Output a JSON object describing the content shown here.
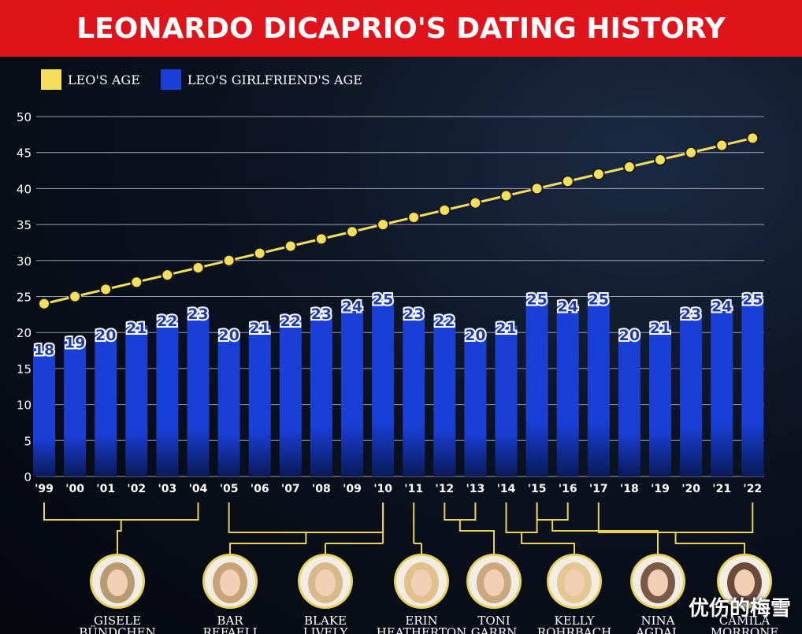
{
  "colors": {
    "banner": "#e0131b",
    "leo_line": "#f3df5a",
    "girlfriend_bar": "#1a3fd6",
    "bracket": "#e8d25a"
  },
  "watermark": "优伤的梅雪",
  "chart_data": {
    "type": "bar",
    "title": "LEONARDO DICAPRIO'S DATING HISTORY",
    "categories": [
      "'99",
      "'00",
      "'01",
      "'02",
      "'03",
      "'04",
      "'05",
      "'06",
      "'07",
      "'08",
      "'09",
      "'10",
      "'11",
      "'12",
      "'13",
      "'14",
      "'15",
      "'16",
      "'17",
      "'18",
      "'19",
      "'20",
      "'21",
      "'22"
    ],
    "series": [
      {
        "name": "LEO'S AGE",
        "type": "line",
        "values": [
          24,
          25,
          26,
          27,
          28,
          29,
          30,
          31,
          32,
          33,
          34,
          35,
          36,
          37,
          38,
          39,
          40,
          41,
          42,
          43,
          44,
          45,
          46,
          47
        ]
      },
      {
        "name": "LEO'S GIRLFRIEND'S AGE",
        "type": "bar",
        "values": [
          18,
          19,
          20,
          21,
          22,
          23,
          20,
          21,
          22,
          23,
          24,
          25,
          23,
          22,
          20,
          21,
          25,
          24,
          25,
          20,
          21,
          23,
          24,
          25
        ]
      }
    ],
    "yticks": [
      0,
      5,
      10,
      15,
      20,
      25,
      30,
      35,
      40,
      45,
      50
    ],
    "ylim": [
      0,
      50
    ],
    "grid": true,
    "legend": "top-left",
    "girlfriends": [
      {
        "name": [
          "GISELE",
          "BÜNDCHEN"
        ],
        "from": 0,
        "to": 5,
        "tone": "#b89a72"
      },
      {
        "name": [
          "BAR",
          "REFAELI"
        ],
        "from": 6,
        "to": 11,
        "tone": "#c9a27a"
      },
      {
        "name": [
          "BLAKE",
          "LIVELY"
        ],
        "from": 11,
        "to": 11,
        "tone": "#d8b98a"
      },
      {
        "name": [
          "ERIN",
          "HEATHERTON"
        ],
        "from": 12,
        "to": 12,
        "tone": "#e2c08c"
      },
      {
        "name": [
          "TONI",
          "GARRN"
        ],
        "from": 13,
        "to": 14,
        "tone": "#caa77e"
      },
      {
        "name": [
          "KELLY",
          "ROHRBACH"
        ],
        "from": 15,
        "to": 16,
        "tone": "#e3c691"
      },
      {
        "name": [
          "NINA",
          "AGDAL"
        ],
        "from": 16,
        "to": 17,
        "tone": "#7a5a44"
      },
      {
        "name": [
          "CAMILA",
          "MORRONE"
        ],
        "from": 18,
        "to": 23,
        "tone": "#6b4a3a"
      }
    ]
  }
}
